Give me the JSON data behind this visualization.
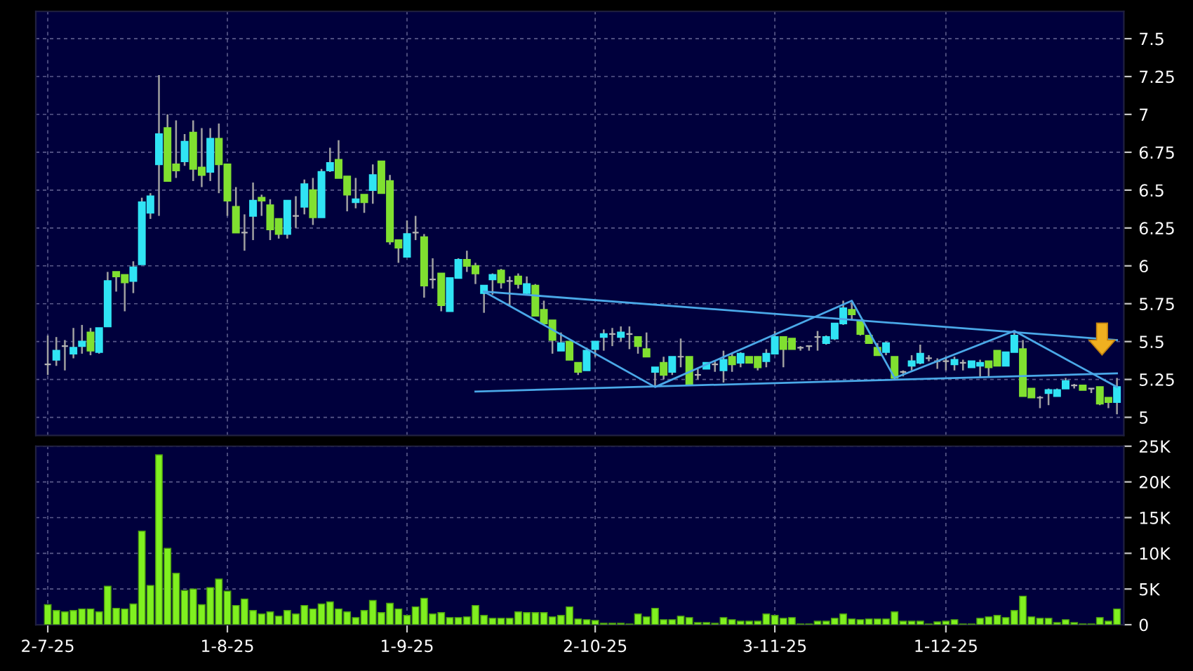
{
  "chart_data": [
    {
      "type": "candlestick",
      "ylim": [
        4.88,
        7.68
      ],
      "categories": [
        null,
        null,
        null,
        null,
        null,
        null,
        null,
        null,
        null,
        null,
        null,
        null,
        null,
        null,
        null,
        null,
        null,
        null,
        null,
        null,
        null,
        null,
        null,
        null,
        null,
        null,
        null,
        null,
        null,
        null,
        null,
        null,
        null,
        null,
        null,
        null,
        null,
        null,
        null,
        null,
        null,
        null,
        null,
        null,
        null,
        null,
        null,
        null,
        null,
        null,
        null,
        null,
        null,
        null,
        null,
        null,
        null,
        null,
        null,
        null,
        null,
        null,
        null,
        null,
        null,
        null,
        null,
        null,
        null,
        null,
        null,
        null,
        null,
        null,
        null,
        null,
        null,
        null,
        null,
        null,
        null,
        null,
        null,
        null,
        null,
        null,
        null,
        null,
        null,
        null,
        null,
        null,
        null,
        null,
        null,
        null,
        null,
        null,
        null,
        null,
        null,
        null,
        null,
        null,
        null,
        null,
        null,
        null,
        null,
        null,
        null,
        null,
        null,
        null,
        null,
        null,
        null,
        null,
        null,
        null,
        null,
        null,
        null,
        null,
        null,
        null
      ],
      "yticks": [
        5,
        5.25,
        5.5,
        5.75,
        6,
        6.25,
        6.5,
        6.75,
        7,
        7.25,
        7.5
      ],
      "grid": true,
      "tick_labels": "y",
      "ohlc": [
        [
          5.35,
          5.54,
          5.28,
          5.35
        ],
        [
          5.38,
          5.53,
          5.34,
          5.44
        ],
        [
          5.47,
          5.51,
          5.31,
          5.47
        ],
        [
          5.42,
          5.59,
          5.39,
          5.46
        ],
        [
          5.47,
          5.61,
          5.42,
          5.5
        ],
        [
          5.56,
          5.59,
          5.41,
          5.44
        ],
        [
          5.43,
          5.59,
          5.42,
          5.59
        ],
        [
          5.6,
          5.96,
          5.6,
          5.9
        ],
        [
          5.96,
          5.96,
          5.83,
          5.93
        ],
        [
          5.94,
          5.94,
          5.7,
          5.89
        ],
        [
          5.9,
          6.03,
          5.82,
          5.99
        ],
        [
          6.01,
          6.45,
          6.01,
          6.42
        ],
        [
          6.35,
          6.48,
          6.31,
          6.46
        ],
        [
          6.67,
          7.26,
          6.33,
          6.87
        ],
        [
          6.91,
          7.0,
          6.56,
          6.56
        ],
        [
          6.67,
          6.96,
          6.58,
          6.63
        ],
        [
          6.69,
          6.87,
          6.66,
          6.82
        ],
        [
          6.88,
          6.96,
          6.56,
          6.64
        ],
        [
          6.65,
          6.91,
          6.52,
          6.6
        ],
        [
          6.62,
          6.91,
          6.56,
          6.84
        ],
        [
          6.84,
          6.94,
          6.48,
          6.67
        ],
        [
          6.67,
          6.67,
          6.33,
          6.43
        ],
        [
          6.39,
          6.52,
          6.22,
          6.22
        ],
        [
          6.22,
          6.34,
          6.1,
          6.22
        ],
        [
          6.33,
          6.55,
          6.17,
          6.43
        ],
        [
          6.45,
          6.47,
          6.33,
          6.43
        ],
        [
          6.4,
          6.44,
          6.17,
          6.24
        ],
        [
          6.31,
          6.31,
          6.18,
          6.21
        ],
        [
          6.21,
          6.43,
          6.18,
          6.43
        ],
        [
          6.33,
          6.46,
          6.25,
          6.33
        ],
        [
          6.39,
          6.57,
          6.34,
          6.54
        ],
        [
          6.5,
          6.58,
          6.27,
          6.32
        ],
        [
          6.32,
          6.64,
          6.32,
          6.62
        ],
        [
          6.63,
          6.78,
          6.62,
          6.68
        ],
        [
          6.7,
          6.83,
          6.58,
          6.58
        ],
        [
          6.59,
          6.59,
          6.36,
          6.47
        ],
        [
          6.42,
          6.58,
          6.38,
          6.44
        ],
        [
          6.47,
          6.47,
          6.35,
          6.42
        ],
        [
          6.5,
          6.67,
          6.41,
          6.6
        ],
        [
          6.69,
          6.69,
          6.48,
          6.48
        ],
        [
          6.56,
          6.6,
          6.14,
          6.16
        ],
        [
          6.17,
          6.17,
          6.02,
          6.12
        ],
        [
          6.06,
          6.3,
          6.06,
          6.21
        ],
        [
          6.22,
          6.33,
          6.17,
          6.22
        ],
        [
          6.19,
          6.21,
          5.79,
          5.87
        ],
        [
          5.91,
          6.05,
          5.85,
          5.91
        ],
        [
          5.95,
          5.95,
          5.7,
          5.74
        ],
        [
          5.7,
          5.92,
          5.7,
          5.92
        ],
        [
          5.92,
          6.05,
          5.92,
          6.04
        ],
        [
          6.04,
          6.1,
          5.96,
          6.0
        ],
        [
          6.0,
          6.02,
          5.88,
          5.95
        ],
        [
          5.82,
          5.87,
          5.69,
          5.87
        ],
        [
          5.91,
          5.95,
          5.81,
          5.94
        ],
        [
          5.97,
          5.98,
          5.85,
          5.89
        ],
        [
          5.9,
          5.93,
          5.74,
          5.9
        ],
        [
          5.93,
          5.95,
          5.85,
          5.88
        ],
        [
          5.82,
          5.93,
          5.81,
          5.88
        ],
        [
          5.87,
          5.88,
          5.67,
          5.67
        ],
        [
          5.71,
          5.77,
          5.62,
          5.62
        ],
        [
          5.64,
          5.64,
          5.42,
          5.51
        ],
        [
          5.44,
          5.56,
          5.44,
          5.49
        ],
        [
          5.5,
          5.5,
          5.38,
          5.38
        ],
        [
          5.36,
          5.36,
          5.28,
          5.3
        ],
        [
          5.31,
          5.46,
          5.31,
          5.44
        ],
        [
          5.45,
          5.5,
          5.4,
          5.5
        ],
        [
          5.53,
          5.58,
          5.44,
          5.55
        ],
        [
          5.55,
          5.59,
          5.47,
          5.55
        ],
        [
          5.53,
          5.6,
          5.5,
          5.56
        ],
        [
          5.55,
          5.6,
          5.45,
          5.55
        ],
        [
          5.53,
          5.53,
          5.42,
          5.47
        ],
        [
          5.45,
          5.56,
          5.4,
          5.4
        ],
        [
          5.3,
          5.33,
          5.2,
          5.33
        ],
        [
          5.36,
          5.4,
          5.25,
          5.28
        ],
        [
          5.3,
          5.4,
          5.28,
          5.4
        ],
        [
          5.4,
          5.52,
          5.33,
          5.4
        ],
        [
          5.4,
          5.4,
          5.22,
          5.22
        ],
        [
          5.28,
          5.32,
          5.25,
          5.28
        ],
        [
          5.32,
          5.36,
          5.32,
          5.36
        ],
        [
          5.35,
          5.37,
          5.3,
          5.35
        ],
        [
          5.31,
          5.44,
          5.23,
          5.38
        ],
        [
          5.4,
          5.42,
          5.3,
          5.35
        ],
        [
          5.36,
          5.43,
          5.33,
          5.42
        ],
        [
          5.4,
          5.4,
          5.36,
          5.36
        ],
        [
          5.4,
          5.4,
          5.31,
          5.33
        ],
        [
          5.37,
          5.45,
          5.33,
          5.42
        ],
        [
          5.42,
          5.57,
          5.42,
          5.53
        ],
        [
          5.53,
          5.53,
          5.33,
          5.45
        ],
        [
          5.52,
          5.52,
          5.45,
          5.45
        ],
        [
          5.46,
          5.47,
          5.44,
          5.46
        ],
        [
          5.47,
          5.47,
          5.44,
          5.47
        ],
        [
          5.53,
          5.57,
          5.44,
          5.53
        ],
        [
          5.49,
          5.54,
          5.48,
          5.53
        ],
        [
          5.52,
          5.62,
          5.51,
          5.62
        ],
        [
          5.62,
          5.77,
          5.61,
          5.72
        ],
        [
          5.71,
          5.76,
          5.64,
          5.68
        ],
        [
          5.64,
          5.64,
          5.54,
          5.55
        ],
        [
          5.54,
          5.54,
          5.49,
          5.49
        ],
        [
          5.46,
          5.49,
          5.41,
          5.41
        ],
        [
          5.43,
          5.5,
          5.41,
          5.49
        ],
        [
          5.4,
          5.4,
          5.25,
          5.26
        ],
        [
          5.3,
          5.31,
          5.27,
          5.3
        ],
        [
          5.34,
          5.41,
          5.31,
          5.37
        ],
        [
          5.36,
          5.48,
          5.35,
          5.42
        ],
        [
          5.39,
          5.41,
          5.37,
          5.39
        ],
        [
          5.37,
          5.39,
          5.32,
          5.37
        ],
        [
          5.37,
          5.4,
          5.31,
          5.37
        ],
        [
          5.35,
          5.4,
          5.31,
          5.38
        ],
        [
          5.36,
          5.38,
          5.31,
          5.36
        ],
        [
          5.33,
          5.37,
          5.33,
          5.37
        ],
        [
          5.34,
          5.38,
          5.26,
          5.36
        ],
        [
          5.37,
          5.37,
          5.27,
          5.33
        ],
        [
          5.44,
          5.44,
          5.34,
          5.34
        ],
        [
          5.34,
          5.43,
          5.34,
          5.43
        ],
        [
          5.43,
          5.56,
          5.43,
          5.54
        ],
        [
          5.45,
          5.51,
          5.14,
          5.14
        ],
        [
          5.19,
          5.19,
          5.13,
          5.13
        ],
        [
          5.13,
          5.14,
          5.06,
          5.13
        ],
        [
          5.16,
          5.19,
          5.08,
          5.18
        ],
        [
          5.14,
          5.19,
          5.14,
          5.18
        ],
        [
          5.19,
          5.26,
          5.19,
          5.24
        ],
        [
          5.21,
          5.22,
          5.19,
          5.21
        ],
        [
          5.21,
          5.21,
          5.18,
          5.18
        ],
        [
          5.19,
          5.19,
          5.16,
          5.19
        ],
        [
          5.2,
          5.2,
          5.08,
          5.09
        ],
        [
          5.13,
          5.13,
          5.06,
          5.1
        ],
        [
          5.1,
          5.26,
          5.02,
          5.2
        ]
      ],
      "colors": [
        "#b4b4b4",
        "#30e4f4",
        "#b4b4b4",
        "#30e4f4",
        "#30e4f4",
        "#80e030",
        "#30e4f4",
        "#30e4f4",
        "#80e030",
        "#80e030",
        "#30e4f4",
        "#30e4f4",
        "#30e4f4",
        "#30e4f4",
        "#80e030",
        "#80e030",
        "#30e4f4",
        "#80e030",
        "#80e030",
        "#30e4f4",
        "#80e030",
        "#80e030",
        "#80e030",
        "#b4b4b4",
        "#30e4f4",
        "#80e030",
        "#80e030",
        "#80e030",
        "#30e4f4",
        "#b4b4b4",
        "#30e4f4",
        "#80e030",
        "#30e4f4",
        "#30e4f4",
        "#80e030",
        "#80e030",
        "#30e4f4",
        "#80e030",
        "#30e4f4",
        "#80e030",
        "#80e030",
        "#80e030",
        "#30e4f4",
        "#b4b4b4",
        "#80e030",
        "#b4b4b4",
        "#80e030",
        "#30e4f4",
        "#30e4f4",
        "#80e030",
        "#80e030",
        "#30e4f4",
        "#30e4f4",
        "#80e030",
        "#b4b4b4",
        "#80e030",
        "#30e4f4",
        "#80e030",
        "#80e030",
        "#80e030",
        "#30e4f4",
        "#80e030",
        "#80e030",
        "#30e4f4",
        "#30e4f4",
        "#30e4f4",
        "#b4b4b4",
        "#30e4f4",
        "#b4b4b4",
        "#80e030",
        "#80e030",
        "#30e4f4",
        "#80e030",
        "#30e4f4",
        "#b4b4b4",
        "#80e030",
        "#b4b4b4",
        "#30e4f4",
        "#b4b4b4",
        "#30e4f4",
        "#80e030",
        "#30e4f4",
        "#80e030",
        "#80e030",
        "#30e4f4",
        "#30e4f4",
        "#80e030",
        "#80e030",
        "#b4b4b4",
        "#b4b4b4",
        "#b4b4b4",
        "#30e4f4",
        "#30e4f4",
        "#30e4f4",
        "#80e030",
        "#80e030",
        "#80e030",
        "#80e030",
        "#30e4f4",
        "#80e030",
        "#b4b4b4",
        "#30e4f4",
        "#30e4f4",
        "#b4b4b4",
        "#b4b4b4",
        "#b4b4b4",
        "#30e4f4",
        "#b4b4b4",
        "#30e4f4",
        "#30e4f4",
        "#80e030",
        "#80e030",
        "#30e4f4",
        "#30e4f4",
        "#80e030",
        "#80e030",
        "#b4b4b4",
        "#30e4f4",
        "#30e4f4",
        "#30e4f4",
        "#b4b4b4",
        "#80e030",
        "#b4b4b4",
        "#80e030",
        "#80e030",
        "#30e4f4"
      ],
      "series": [
        {
          "type": "line",
          "color": "#4aa8e8",
          "values": [
            null,
            null,
            null,
            null,
            null,
            null,
            null,
            null,
            null,
            null,
            null,
            null,
            null,
            null,
            null,
            null,
            null,
            null,
            null,
            null,
            null,
            null,
            null,
            null,
            null,
            null,
            null,
            null,
            null,
            null,
            null,
            null,
            null,
            null,
            null,
            null,
            null,
            null,
            null,
            null,
            null,
            null,
            null,
            null,
            null,
            null,
            null,
            null,
            null,
            null,
            null,
            5.83,
            null,
            null,
            null,
            null,
            null,
            null,
            null,
            null,
            null,
            null,
            null,
            null,
            null,
            null,
            null,
            null,
            null,
            null,
            null,
            null,
            null,
            null,
            null,
            null,
            null,
            null,
            null,
            null,
            null,
            null,
            null,
            null,
            null,
            null,
            null,
            null,
            null,
            null,
            null,
            null,
            null,
            null,
            null,
            null,
            null,
            null,
            null,
            null,
            null,
            null,
            null,
            null,
            null,
            null,
            null,
            null,
            null,
            null,
            null,
            null,
            null,
            null,
            null,
            null,
            null,
            null,
            null,
            null,
            null,
            null,
            null,
            null,
            null,
            5.51
          ]
        },
        {
          "type": "line",
          "color": "#4aa8e8",
          "values": [
            null,
            null,
            null,
            null,
            null,
            null,
            null,
            null,
            null,
            null,
            null,
            null,
            null,
            null,
            null,
            null,
            null,
            null,
            null,
            null,
            null,
            null,
            null,
            null,
            null,
            null,
            null,
            null,
            null,
            null,
            null,
            null,
            null,
            null,
            null,
            null,
            null,
            null,
            null,
            null,
            null,
            null,
            null,
            null,
            null,
            null,
            null,
            null,
            null,
            null,
            5.17,
            null,
            null,
            null,
            null,
            null,
            null,
            null,
            null,
            null,
            null,
            null,
            null,
            null,
            null,
            null,
            null,
            null,
            null,
            null,
            null,
            null,
            null,
            null,
            null,
            null,
            null,
            null,
            null,
            null,
            null,
            null,
            null,
            null,
            null,
            null,
            null,
            null,
            null,
            null,
            null,
            null,
            null,
            null,
            null,
            null,
            null,
            null,
            null,
            null,
            null,
            null,
            null,
            null,
            null,
            null,
            null,
            null,
            null,
            null,
            null,
            null,
            null,
            null,
            null,
            null,
            null,
            null,
            null,
            null,
            null,
            null,
            null,
            null,
            null,
            5.29
          ]
        },
        {
          "type": "line",
          "color": "#4aa8e8",
          "values": [
            null,
            null,
            null,
            null,
            null,
            null,
            null,
            null,
            null,
            null,
            null,
            null,
            null,
            null,
            null,
            null,
            null,
            null,
            null,
            null,
            null,
            null,
            null,
            null,
            null,
            null,
            null,
            null,
            null,
            null,
            null,
            null,
            null,
            null,
            null,
            null,
            null,
            null,
            null,
            null,
            null,
            null,
            null,
            null,
            null,
            null,
            null,
            null,
            null,
            null,
            null,
            5.83,
            null,
            null,
            null,
            null,
            null,
            null,
            null,
            null,
            null,
            null,
            null,
            null,
            null,
            null,
            null,
            null,
            null,
            null,
            null,
            5.2,
            null,
            null,
            null,
            null,
            null,
            null,
            null,
            null,
            null,
            null,
            null,
            null,
            null,
            null,
            null,
            null,
            null,
            null,
            null,
            null,
            null,
            null,
            5.77,
            null,
            null,
            null,
            null,
            5.26,
            null,
            null,
            null,
            null,
            null,
            null,
            null,
            null,
            null,
            null,
            null,
            null,
            null,
            5.57,
            null,
            null,
            null,
            null,
            null,
            null,
            null,
            null,
            null,
            null,
            null,
            5.2
          ]
        }
      ]
    },
    {
      "type": "bar",
      "color": "#80f020",
      "ylim": [
        0,
        25000
      ],
      "categories": [
        "2-7-25",
        null,
        null,
        null,
        null,
        null,
        null,
        null,
        null,
        null,
        null,
        null,
        null,
        null,
        null,
        null,
        null,
        null,
        null,
        null,
        null,
        "1-8-25",
        null,
        null,
        null,
        null,
        null,
        null,
        null,
        null,
        null,
        null,
        null,
        null,
        null,
        null,
        null,
        null,
        null,
        null,
        null,
        null,
        "1-9-25",
        null,
        null,
        null,
        null,
        null,
        null,
        null,
        null,
        null,
        null,
        null,
        null,
        null,
        null,
        null,
        null,
        null,
        null,
        null,
        null,
        null,
        "2-10-25",
        null,
        null,
        null,
        null,
        null,
        null,
        null,
        null,
        null,
        null,
        null,
        null,
        null,
        null,
        null,
        null,
        null,
        null,
        null,
        null,
        "3-11-25",
        null,
        null,
        null,
        null,
        null,
        null,
        null,
        null,
        null,
        null,
        null,
        null,
        null,
        null,
        null,
        null,
        null,
        null,
        null,
        "1-12-25",
        null,
        null,
        null,
        null,
        null,
        null,
        null,
        null,
        null,
        null,
        null,
        null,
        null,
        null,
        null,
        null,
        null,
        null,
        null,
        null
      ],
      "yticks": [
        0,
        {
          "value": 5000,
          "label": "5K"
        },
        {
          "value": 10000,
          "label": "10K"
        },
        {
          "value": 15000,
          "label": "15K"
        },
        {
          "value": 20000,
          "label": "20K"
        },
        {
          "value": 25000,
          "label": "25K"
        }
      ],
      "grid": true,
      "values": [
        2800,
        2000,
        1800,
        2000,
        2200,
        2200,
        1800,
        5400,
        2300,
        2200,
        2900,
        13100,
        5500,
        23800,
        10700,
        7200,
        4800,
        5000,
        2800,
        5200,
        6400,
        4700,
        2700,
        3600,
        2000,
        1500,
        1800,
        1200,
        2000,
        1500,
        2700,
        2200,
        2900,
        3200,
        2200,
        1800,
        1000,
        2000,
        3400,
        1700,
        3000,
        2200,
        1300,
        2500,
        3700,
        1500,
        1700,
        1000,
        1000,
        1100,
        2700,
        1300,
        900,
        900,
        900,
        1800,
        1700,
        1700,
        1700,
        1100,
        1300,
        2500,
        800,
        700,
        600,
        200,
        200,
        200,
        100,
        1500,
        1100,
        2300,
        700,
        700,
        1200,
        1000,
        300,
        300,
        200,
        1000,
        700,
        500,
        500,
        500,
        1500,
        1300,
        900,
        1000,
        100,
        100,
        500,
        500,
        900,
        1500,
        800,
        700,
        800,
        800,
        800,
        1800,
        500,
        500,
        500,
        100,
        400,
        500,
        700,
        100,
        100,
        900,
        1100,
        1300,
        1000,
        2000,
        4000,
        1100,
        900,
        900,
        300,
        700,
        300,
        100,
        100,
        1000,
        500,
        2200
      ]
    }
  ]
}
